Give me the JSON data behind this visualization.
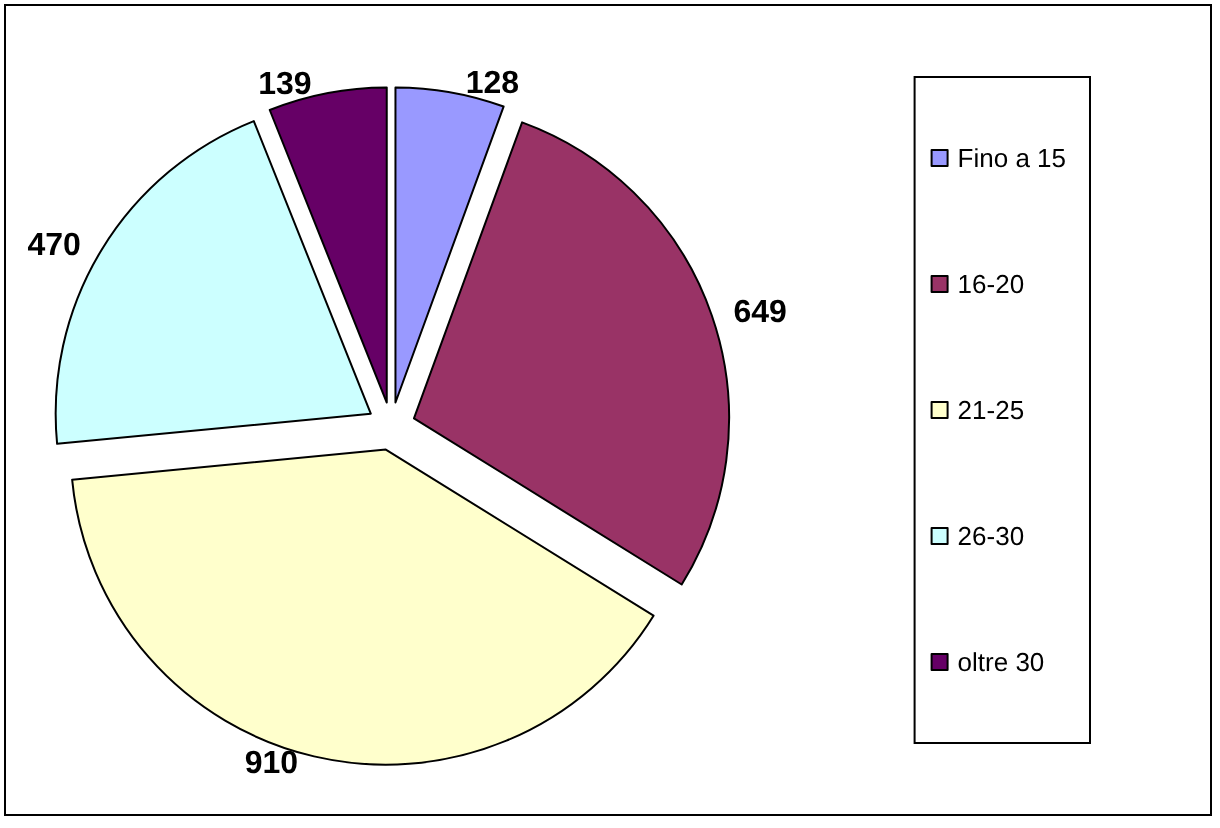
{
  "chart_data": {
    "type": "pie",
    "categories": [
      "Fino a 15",
      "16-20",
      "21-25",
      "26-30",
      "oltre 30"
    ],
    "values": [
      128,
      649,
      910,
      470,
      139
    ],
    "colors": [
      "#9999ff",
      "#993366",
      "#ffffcc",
      "#ccffff",
      "#660066"
    ],
    "data_labels": true,
    "legend": "right"
  }
}
